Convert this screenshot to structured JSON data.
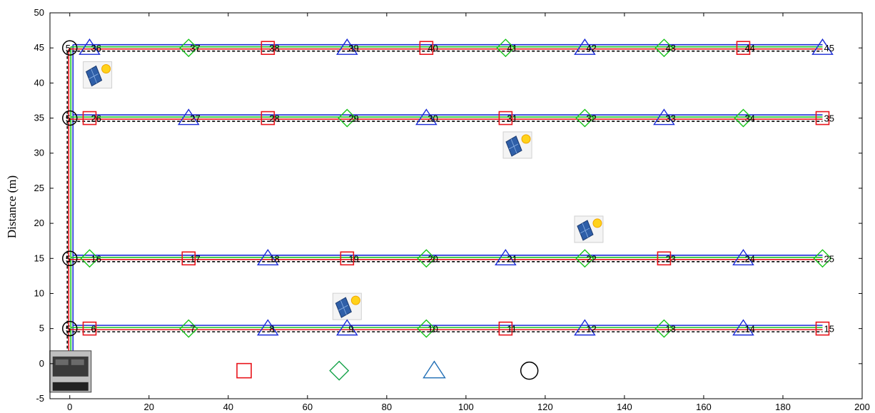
{
  "chart_data": {
    "type": "scatter",
    "title": "",
    "xlabel": "",
    "ylabel": "Distance (m)",
    "xlim": [
      -5,
      200
    ],
    "ylim": [
      -5,
      50
    ],
    "x_ticks": [
      0,
      20,
      40,
      60,
      80,
      100,
      120,
      140,
      160,
      180,
      200
    ],
    "y_ticks": [
      -5,
      0,
      5,
      10,
      15,
      20,
      25,
      30,
      35,
      40,
      45,
      50
    ],
    "x_tick_labels": [
      "0",
      "20",
      "40",
      "60",
      "80",
      "100",
      "120",
      "140",
      "160",
      "180",
      "200"
    ],
    "y_tick_labels": [
      "-5",
      "0",
      "5",
      "10",
      "15",
      "20",
      "25",
      "30",
      "35",
      "40",
      "45",
      "50"
    ],
    "grid": false,
    "colors": {
      "phase_red": "#e8141b",
      "phase_green": "#19c41e",
      "phase_blue": "#1a2bd6",
      "neutral": "#000000",
      "legend_blue": "#1f6db5",
      "legend_green": "#16a34a"
    },
    "feeder_rows": [
      5,
      15,
      35,
      45
    ],
    "feeder_trunk_x": 0,
    "feeder_end_x": 190,
    "junctions": [
      {
        "label": "5",
        "x": 0,
        "y": 5
      },
      {
        "label": "5",
        "x": 0,
        "y": 15
      },
      {
        "label": "5",
        "x": 0,
        "y": 35
      },
      {
        "label": "5",
        "x": 0,
        "y": 45
      }
    ],
    "loads": [
      {
        "label": "6",
        "x": 5,
        "y": 5,
        "marker": "square"
      },
      {
        "label": "7",
        "x": 30,
        "y": 5,
        "marker": "diamond"
      },
      {
        "label": "8",
        "x": 50,
        "y": 5,
        "marker": "triangle"
      },
      {
        "label": "9",
        "x": 70,
        "y": 5,
        "marker": "triangle"
      },
      {
        "label": "10",
        "x": 90,
        "y": 5,
        "marker": "diamond"
      },
      {
        "label": "11",
        "x": 110,
        "y": 5,
        "marker": "square"
      },
      {
        "label": "12",
        "x": 130,
        "y": 5,
        "marker": "triangle"
      },
      {
        "label": "13",
        "x": 150,
        "y": 5,
        "marker": "diamond"
      },
      {
        "label": "14",
        "x": 170,
        "y": 5,
        "marker": "triangle"
      },
      {
        "label": "15",
        "x": 190,
        "y": 5,
        "marker": "square"
      },
      {
        "label": "16",
        "x": 5,
        "y": 15,
        "marker": "diamond"
      },
      {
        "label": "17",
        "x": 30,
        "y": 15,
        "marker": "square"
      },
      {
        "label": "18",
        "x": 50,
        "y": 15,
        "marker": "triangle"
      },
      {
        "label": "19",
        "x": 70,
        "y": 15,
        "marker": "square"
      },
      {
        "label": "20",
        "x": 90,
        "y": 15,
        "marker": "diamond"
      },
      {
        "label": "21",
        "x": 110,
        "y": 15,
        "marker": "triangle"
      },
      {
        "label": "22",
        "x": 130,
        "y": 15,
        "marker": "diamond"
      },
      {
        "label": "23",
        "x": 150,
        "y": 15,
        "marker": "square"
      },
      {
        "label": "24",
        "x": 170,
        "y": 15,
        "marker": "triangle"
      },
      {
        "label": "25",
        "x": 190,
        "y": 15,
        "marker": "diamond"
      },
      {
        "label": "26",
        "x": 5,
        "y": 35,
        "marker": "square"
      },
      {
        "label": "27",
        "x": 30,
        "y": 35,
        "marker": "triangle"
      },
      {
        "label": "28",
        "x": 50,
        "y": 35,
        "marker": "square"
      },
      {
        "label": "29",
        "x": 70,
        "y": 35,
        "marker": "diamond"
      },
      {
        "label": "30",
        "x": 90,
        "y": 35,
        "marker": "triangle"
      },
      {
        "label": "31",
        "x": 110,
        "y": 35,
        "marker": "square"
      },
      {
        "label": "32",
        "x": 130,
        "y": 35,
        "marker": "diamond"
      },
      {
        "label": "33",
        "x": 150,
        "y": 35,
        "marker": "triangle"
      },
      {
        "label": "34",
        "x": 170,
        "y": 35,
        "marker": "diamond"
      },
      {
        "label": "35",
        "x": 190,
        "y": 35,
        "marker": "square"
      },
      {
        "label": "36",
        "x": 5,
        "y": 45,
        "marker": "triangle"
      },
      {
        "label": "37",
        "x": 30,
        "y": 45,
        "marker": "diamond"
      },
      {
        "label": "38",
        "x": 50,
        "y": 45,
        "marker": "square"
      },
      {
        "label": "39",
        "x": 70,
        "y": 45,
        "marker": "triangle"
      },
      {
        "label": "40",
        "x": 90,
        "y": 45,
        "marker": "square"
      },
      {
        "label": "41",
        "x": 110,
        "y": 45,
        "marker": "diamond"
      },
      {
        "label": "42",
        "x": 130,
        "y": 45,
        "marker": "triangle"
      },
      {
        "label": "43",
        "x": 150,
        "y": 45,
        "marker": "diamond"
      },
      {
        "label": "44",
        "x": 170,
        "y": 45,
        "marker": "square"
      },
      {
        "label": "45",
        "x": 190,
        "y": 45,
        "marker": "triangle"
      }
    ],
    "pv_panels": [
      {
        "x": 7,
        "y": 41
      },
      {
        "x": 70,
        "y": 8
      },
      {
        "x": 113,
        "y": 31
      },
      {
        "x": 131,
        "y": 19
      }
    ],
    "transformer_icon": {
      "x": 0,
      "y": 0
    },
    "legend_markers": [
      {
        "marker": "square",
        "x": 44,
        "y": -1
      },
      {
        "marker": "diamond",
        "x": 68,
        "y": -1
      },
      {
        "marker": "triangle",
        "x": 92,
        "y": -1
      },
      {
        "marker": "circle",
        "x": 116,
        "y": -1
      }
    ]
  }
}
